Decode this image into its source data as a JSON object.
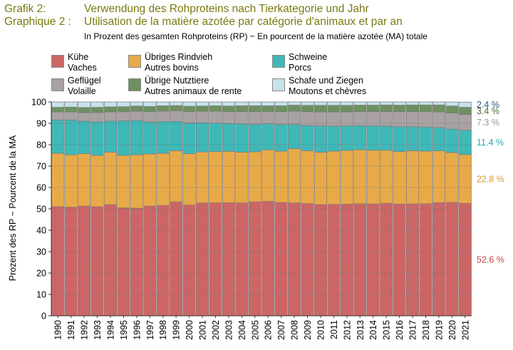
{
  "header": {
    "label_de": "Grafik 2:",
    "title_de": "Verwendung des Rohproteins nach Tierkategorie und Jahr",
    "label_fr": "Graphique 2 :",
    "title_fr": "Utilisation de la matière azotée par catégorie d'animaux et par an",
    "subtitle": "In Prozent des gesamten Rohproteins (RP)   ~   En pourcent de la matière azotée (MA) totale"
  },
  "chart_data": {
    "type": "bar",
    "stacked": true,
    "ylabel": "Prozent des RP   ~   Pourcent de la MA",
    "ylim": [
      0,
      100
    ],
    "yticks": [
      0,
      10,
      20,
      30,
      40,
      50,
      60,
      70,
      80,
      90,
      100
    ],
    "grid": true,
    "legend_position": "top",
    "categories": [
      "1990",
      "1991",
      "1992",
      "1993",
      "1994",
      "1995",
      "1996",
      "1997",
      "1998",
      "1999",
      "2000",
      "2001",
      "2002",
      "2003",
      "2004",
      "2005",
      "2006",
      "2007",
      "2008",
      "2009",
      "2010",
      "2011",
      "2012",
      "2013",
      "2014",
      "2015",
      "2016",
      "2017",
      "2018",
      "2019",
      "2020",
      "2021"
    ],
    "series": [
      {
        "name": "Kühe",
        "name2": "Vaches",
        "color": "#cc6666",
        "values": [
          51.0,
          50.8,
          51.3,
          51.0,
          52.0,
          50.5,
          50.3,
          51.3,
          51.6,
          53.3,
          51.8,
          52.8,
          52.8,
          52.9,
          52.8,
          53.3,
          53.5,
          53.0,
          52.8,
          52.5,
          52.0,
          52.1,
          52.2,
          52.4,
          52.3,
          52.6,
          52.3,
          52.3,
          52.4,
          52.9,
          53.0,
          52.6
        ]
      },
      {
        "name": "Übriges Rindvieh",
        "name2": "Autres bovins",
        "color": "#e8aa48",
        "values": [
          25.0,
          24.5,
          24.5,
          24.0,
          24.5,
          24.5,
          25.0,
          24.4,
          24.4,
          23.9,
          24.0,
          23.8,
          24.0,
          24.0,
          23.7,
          23.4,
          24.1,
          24.0,
          25.3,
          24.7,
          24.5,
          24.9,
          25.1,
          25.2,
          25.1,
          24.8,
          24.5,
          24.9,
          24.6,
          24.2,
          23.3,
          22.8
        ]
      },
      {
        "name": "Schweine",
        "name2": "Porcs",
        "color": "#3fb8b8",
        "values": [
          15.5,
          16.2,
          15.2,
          15.7,
          14.5,
          16.2,
          16.0,
          15.0,
          14.9,
          13.7,
          14.4,
          13.6,
          13.3,
          13.0,
          13.2,
          12.8,
          12.2,
          12.4,
          11.4,
          11.8,
          12.3,
          11.7,
          11.5,
          11.3,
          11.4,
          11.3,
          11.6,
          11.2,
          11.3,
          10.9,
          11.0,
          11.4
        ]
      },
      {
        "name": "Geflügel",
        "name2": "Volaille",
        "color": "#aaa2a2",
        "values": [
          3.8,
          3.8,
          4.0,
          4.3,
          4.3,
          4.2,
          4.3,
          4.7,
          4.8,
          5.0,
          5.2,
          5.4,
          5.5,
          5.6,
          5.8,
          5.9,
          5.7,
          6.0,
          6.1,
          6.4,
          6.5,
          6.6,
          6.5,
          6.6,
          6.7,
          6.8,
          7.0,
          7.0,
          7.1,
          7.3,
          7.5,
          7.3
        ]
      },
      {
        "name": "Übrige Nutztiere",
        "name2": "Autres animaux de rente",
        "color": "#6e9060",
        "values": [
          2.2,
          2.3,
          2.4,
          2.5,
          2.4,
          2.4,
          2.5,
          2.5,
          2.5,
          2.4,
          2.6,
          2.5,
          2.6,
          2.6,
          2.7,
          2.8,
          2.7,
          2.8,
          2.9,
          3.0,
          3.1,
          3.1,
          3.1,
          3.0,
          3.0,
          3.1,
          3.1,
          3.2,
          3.2,
          3.3,
          3.3,
          3.4
        ]
      },
      {
        "name": "Schafe und Ziegen",
        "name2": "Moutons et chèvres",
        "color": "#c6e2ea",
        "values": [
          2.5,
          2.4,
          2.6,
          2.5,
          2.3,
          2.2,
          1.9,
          2.1,
          1.8,
          1.7,
          2.0,
          1.9,
          1.8,
          1.9,
          1.8,
          1.8,
          1.8,
          1.8,
          1.5,
          1.6,
          1.6,
          1.6,
          1.6,
          1.5,
          1.5,
          1.4,
          1.5,
          1.4,
          1.4,
          1.4,
          1.9,
          2.4
        ]
      }
    ],
    "annotations": [
      {
        "label": "2.4 %",
        "color": "#2a5a8a",
        "value": 98.8
      },
      {
        "label": "3.4 %",
        "color": "#4a6e38",
        "value": 95.9
      },
      {
        "label": "7.3 %",
        "color": "#999999",
        "value": 90.5
      },
      {
        "label": "11.4 %",
        "color": "#2aa8a8",
        "value": 81.1
      },
      {
        "label": "22.8 %",
        "color": "#d89830",
        "value": 64.0
      },
      {
        "label": "52.6 %",
        "color": "#c04848",
        "value": 26.3
      }
    ]
  }
}
